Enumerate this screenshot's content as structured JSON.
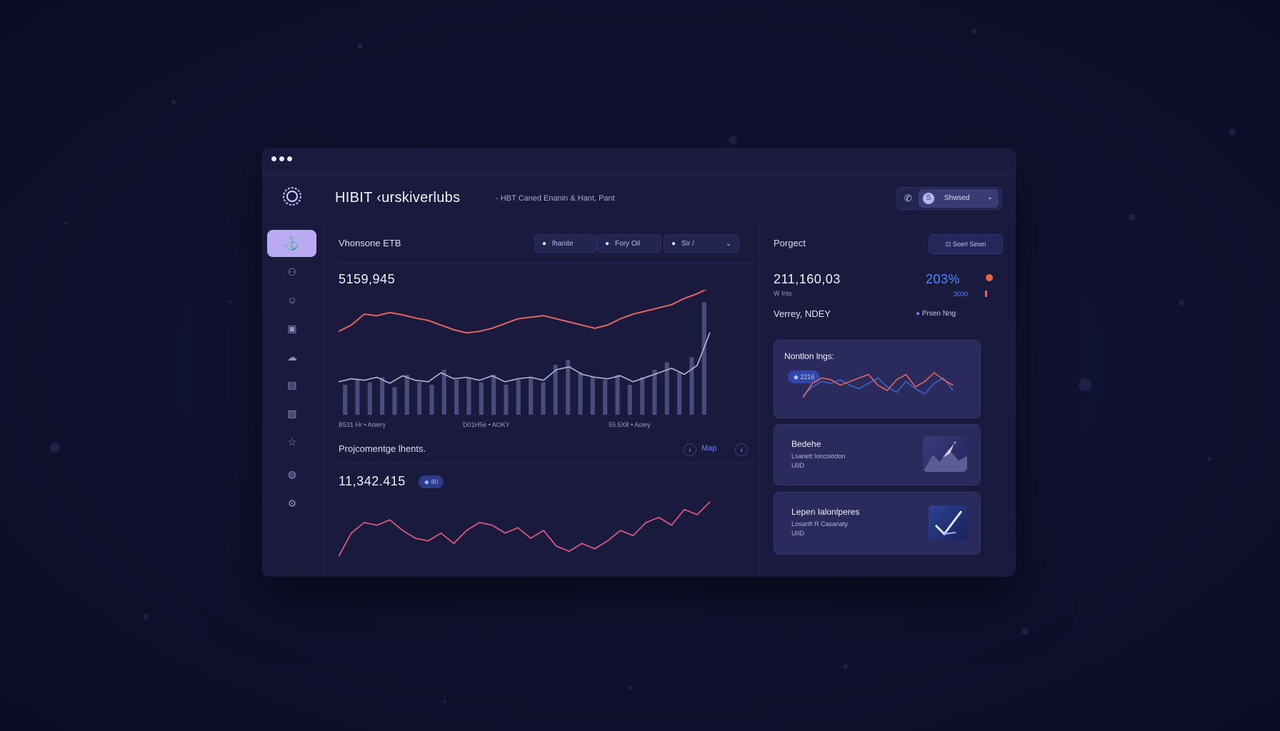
{
  "window": {
    "dots": [
      "",
      "",
      ""
    ]
  },
  "header": {
    "title": "HIBIT ‹urskiverlubs",
    "subtitle": "-   HBT Caned Enanin & Hant, Pant",
    "user_name": "Shwsed",
    "avatar_letter": "S"
  },
  "sidebar": {
    "icons": [
      "anchor-icon",
      "people-icon",
      "smile-icon",
      "folder-icon",
      "cloud-icon",
      "calendar-icon",
      "image-icon",
      "star-icon",
      "drop-icon",
      "settings-icon"
    ]
  },
  "main": {
    "top_panel": {
      "title": "Vhonsone ETB",
      "value": "5159,945",
      "segments": [
        {
          "icon": "o",
          "label": "lhanite"
        },
        {
          "icon": "o",
          "label": "Fory Oil"
        },
        {
          "icon": "o",
          "label": "Sir  /"
        }
      ],
      "x_labels": [
        "B531 Hr • Aolery",
        "D01H5e • AOKY",
        "55.5X8 • Aoley"
      ]
    },
    "bottom_panel": {
      "title": "Projcomentge lhents.",
      "value": "11,342.415",
      "badge": "80",
      "map_label": "Map"
    }
  },
  "right": {
    "title": "Porgect",
    "button_label": "Soerl Sinon",
    "value": "211,160,03",
    "value_sub": "W Ints",
    "pct": "203%",
    "pct_sub": "3000",
    "pair": "Verrey, NDEY",
    "pair_tag": "Prsen Nng",
    "cards": [
      {
        "title": "Nontlon lngs:",
        "badge": "2216"
      },
      {
        "title": "Bedehe",
        "sub1": "Lsanett Ioncsiodon",
        "sub2": "UIID"
      },
      {
        "title": "Lepen Ialonlperes",
        "sub1": "Losanft R Casanaty",
        "sub2": "UIID"
      }
    ]
  },
  "colors": {
    "accent_purple": "#b9aaf2",
    "line_red": "#e2655f",
    "line_blue": "#4169d8",
    "pct_blue": "#4f88ff"
  },
  "chart_data": [
    {
      "type": "line",
      "title": "Vhonsone ETB",
      "series": [
        {
          "values": [
            38,
            46,
            60,
            58,
            62,
            59,
            55,
            52,
            46,
            40,
            36,
            38,
            42,
            48,
            54,
            56,
            58,
            54,
            50,
            46,
            42,
            46,
            54,
            60,
            64,
            68,
            72,
            80,
            86,
            94
          ]
        }
      ],
      "bars": [
        12,
        14,
        13,
        15,
        11,
        16,
        13,
        12,
        18,
        14,
        15,
        13,
        16,
        12,
        14,
        15,
        13,
        20,
        22,
        17,
        15,
        14,
        16,
        12,
        15,
        18,
        21,
        17,
        23,
        45
      ]
    },
    {
      "type": "line",
      "title": "Projcomentge lhents.",
      "series": [
        {
          "values": [
            10,
            28,
            36,
            34,
            38,
            30,
            24,
            22,
            28,
            20,
            30,
            36,
            34,
            28,
            32,
            24,
            30,
            18,
            14,
            20,
            16,
            22,
            30,
            26,
            36,
            40,
            34,
            46,
            42,
            52
          ]
        }
      ]
    }
  ]
}
